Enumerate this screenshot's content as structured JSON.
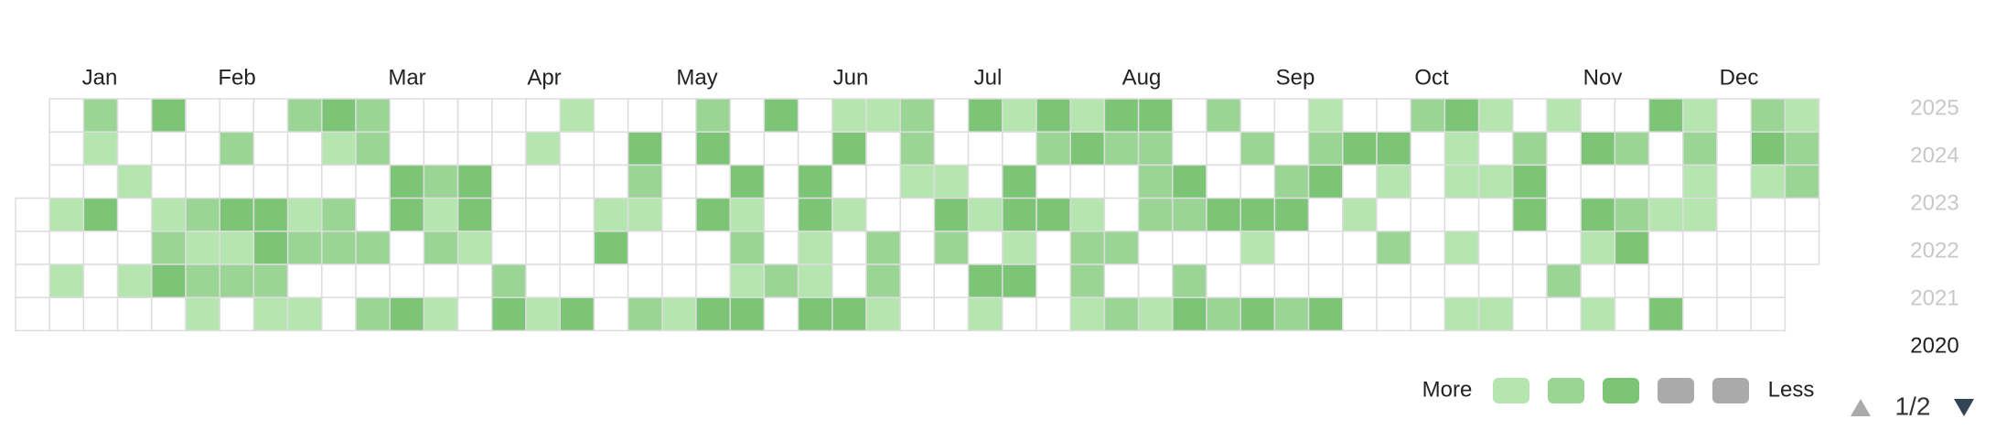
{
  "heatmap": {
    "months": [
      "Jan",
      "Feb",
      "Mar",
      "Apr",
      "May",
      "Jun",
      "Jul",
      "Aug",
      "Sep",
      "Oct",
      "Nov",
      "Dec"
    ],
    "years": [
      "2025",
      "2024",
      "2023",
      "2022",
      "2021",
      "2020"
    ],
    "level_colors": [
      "#ffffff",
      "#b5e6b0",
      "#9bd596",
      "#7cc476"
    ],
    "rows": [
      [
        null,
        0,
        2,
        0,
        3,
        0,
        0,
        0,
        2,
        3,
        2,
        0,
        0,
        0,
        0,
        0,
        1,
        0,
        0,
        0,
        2,
        0,
        3,
        0,
        1,
        1,
        2,
        0,
        3,
        1,
        3,
        1,
        3,
        3,
        0,
        2,
        0,
        0,
        1,
        0,
        0,
        2,
        3,
        1,
        0,
        1,
        0,
        0,
        3,
        1,
        0,
        2,
        1
      ],
      [
        null,
        0,
        1,
        0,
        0,
        0,
        2,
        0,
        0,
        1,
        2,
        0,
        0,
        0,
        0,
        1,
        0,
        0,
        3,
        0,
        3,
        0,
        0,
        0,
        3,
        0,
        2,
        0,
        0,
        0,
        2,
        3,
        2,
        2,
        0,
        0,
        2,
        0,
        2,
        3,
        3,
        0,
        1,
        0,
        2,
        0,
        3,
        2,
        0,
        2,
        0,
        3,
        2
      ],
      [
        null,
        0,
        0,
        1,
        0,
        0,
        0,
        0,
        0,
        0,
        0,
        3,
        2,
        3,
        0,
        0,
        0,
        0,
        2,
        0,
        0,
        3,
        0,
        3,
        0,
        0,
        1,
        1,
        0,
        3,
        0,
        0,
        0,
        2,
        3,
        0,
        0,
        2,
        3,
        0,
        1,
        0,
        1,
        1,
        3,
        0,
        0,
        0,
        0,
        1,
        0,
        1,
        2
      ],
      [
        0,
        1,
        3,
        0,
        1,
        2,
        3,
        3,
        1,
        2,
        0,
        3,
        1,
        3,
        0,
        0,
        0,
        1,
        1,
        0,
        3,
        1,
        0,
        3,
        1,
        0,
        0,
        3,
        1,
        3,
        3,
        1,
        0,
        2,
        2,
        3,
        3,
        3,
        0,
        1,
        0,
        0,
        0,
        0,
        3,
        0,
        3,
        2,
        1,
        1,
        0,
        0,
        0
      ],
      [
        0,
        0,
        0,
        0,
        2,
        1,
        1,
        3,
        2,
        2,
        2,
        0,
        2,
        1,
        0,
        0,
        0,
        3,
        0,
        0,
        0,
        2,
        0,
        1,
        0,
        2,
        0,
        2,
        0,
        1,
        0,
        2,
        2,
        0,
        0,
        0,
        1,
        0,
        0,
        0,
        2,
        0,
        1,
        0,
        0,
        0,
        1,
        3,
        0,
        0,
        0,
        0,
        0
      ],
      [
        0,
        1,
        0,
        1,
        3,
        2,
        2,
        2,
        0,
        0,
        0,
        0,
        0,
        0,
        2,
        0,
        0,
        0,
        0,
        0,
        0,
        1,
        2,
        1,
        0,
        2,
        0,
        0,
        3,
        3,
        0,
        2,
        0,
        0,
        2,
        0,
        0,
        0,
        0,
        0,
        0,
        0,
        0,
        0,
        0,
        2,
        0,
        0,
        0,
        0,
        0,
        0,
        null
      ],
      [
        0,
        0,
        0,
        0,
        0,
        1,
        0,
        1,
        1,
        0,
        2,
        3,
        1,
        0,
        3,
        1,
        3,
        0,
        2,
        1,
        3,
        3,
        0,
        3,
        3,
        1,
        0,
        0,
        1,
        0,
        0,
        1,
        2,
        1,
        3,
        2,
        3,
        2,
        3,
        0,
        0,
        0,
        1,
        1,
        0,
        0,
        1,
        0,
        3,
        0,
        0,
        0,
        null
      ]
    ]
  },
  "legend": {
    "more": "More",
    "less": "Less",
    "colors": [
      "#b5e6b0",
      "#9bd596",
      "#7cc476",
      "#aaaaaa",
      "#aaaaaa"
    ]
  },
  "pagination": {
    "label": "1/2"
  }
}
